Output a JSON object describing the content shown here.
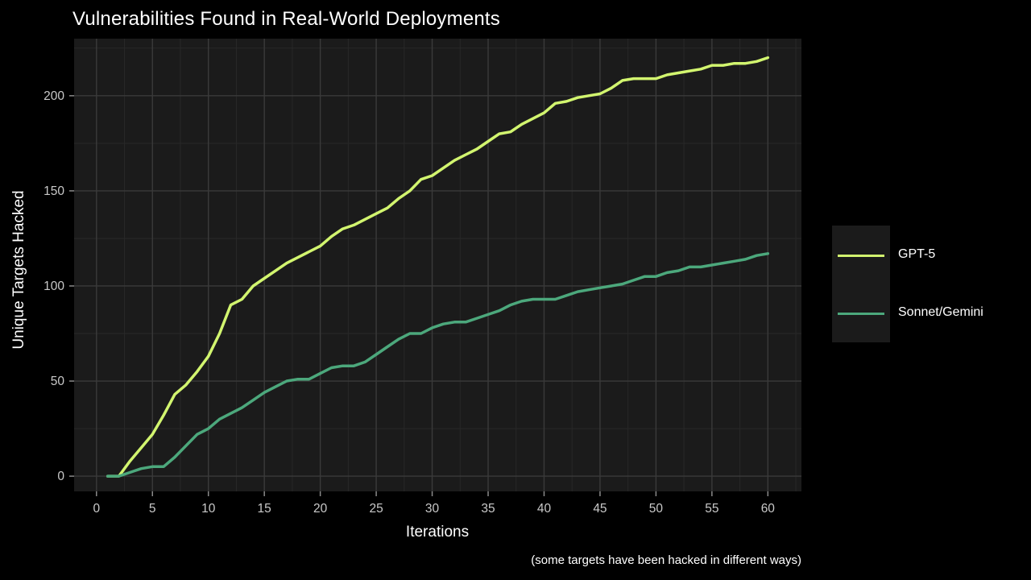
{
  "chart_data": {
    "type": "line",
    "title": "Vulnerabilities Found in Real-World Deployments",
    "xlabel": "Iterations",
    "ylabel": "Unique Targets Hacked",
    "caption": "(some targets have been hacked in different ways)",
    "legend_position": "right",
    "grid": true,
    "background": "#000000",
    "panel_background": "#1b1b1b",
    "xlim": [
      -2,
      63
    ],
    "ylim": [
      -8,
      230
    ],
    "x_ticks": [
      0,
      5,
      10,
      15,
      20,
      25,
      30,
      35,
      40,
      45,
      50,
      55,
      60
    ],
    "y_ticks": [
      0,
      50,
      100,
      150,
      200
    ],
    "x": [
      1,
      2,
      3,
      4,
      5,
      6,
      7,
      8,
      9,
      10,
      11,
      12,
      13,
      14,
      15,
      16,
      17,
      18,
      19,
      20,
      21,
      22,
      23,
      24,
      25,
      26,
      27,
      28,
      29,
      30,
      31,
      32,
      33,
      34,
      35,
      36,
      37,
      38,
      39,
      40,
      41,
      42,
      43,
      44,
      45,
      46,
      47,
      48,
      49,
      50,
      51,
      52,
      53,
      54,
      55,
      56,
      57,
      58,
      59,
      60
    ],
    "series": [
      {
        "name": "GPT-5",
        "color": "#d2f56f",
        "values": [
          0,
          0,
          8,
          15,
          22,
          32,
          43,
          48,
          55,
          63,
          75,
          90,
          93,
          100,
          104,
          108,
          112,
          115,
          118,
          121,
          126,
          130,
          132,
          135,
          138,
          141,
          146,
          150,
          156,
          158,
          162,
          166,
          169,
          172,
          176,
          180,
          181,
          185,
          188,
          191,
          196,
          197,
          199,
          200,
          201,
          204,
          208,
          209,
          209,
          209,
          211,
          212,
          213,
          214,
          216,
          216,
          217,
          217,
          218,
          220
        ]
      },
      {
        "name": "Sonnet/Gemini",
        "color": "#4ca87c",
        "values": [
          0,
          0,
          2,
          4,
          5,
          5,
          10,
          16,
          22,
          25,
          30,
          33,
          36,
          40,
          44,
          47,
          50,
          51,
          51,
          54,
          57,
          58,
          58,
          60,
          64,
          68,
          72,
          75,
          75,
          78,
          80,
          81,
          81,
          83,
          85,
          87,
          90,
          92,
          93,
          93,
          93,
          95,
          97,
          98,
          99,
          100,
          101,
          103,
          105,
          105,
          107,
          108,
          110,
          110,
          111,
          112,
          113,
          114,
          116,
          117
        ]
      }
    ]
  }
}
